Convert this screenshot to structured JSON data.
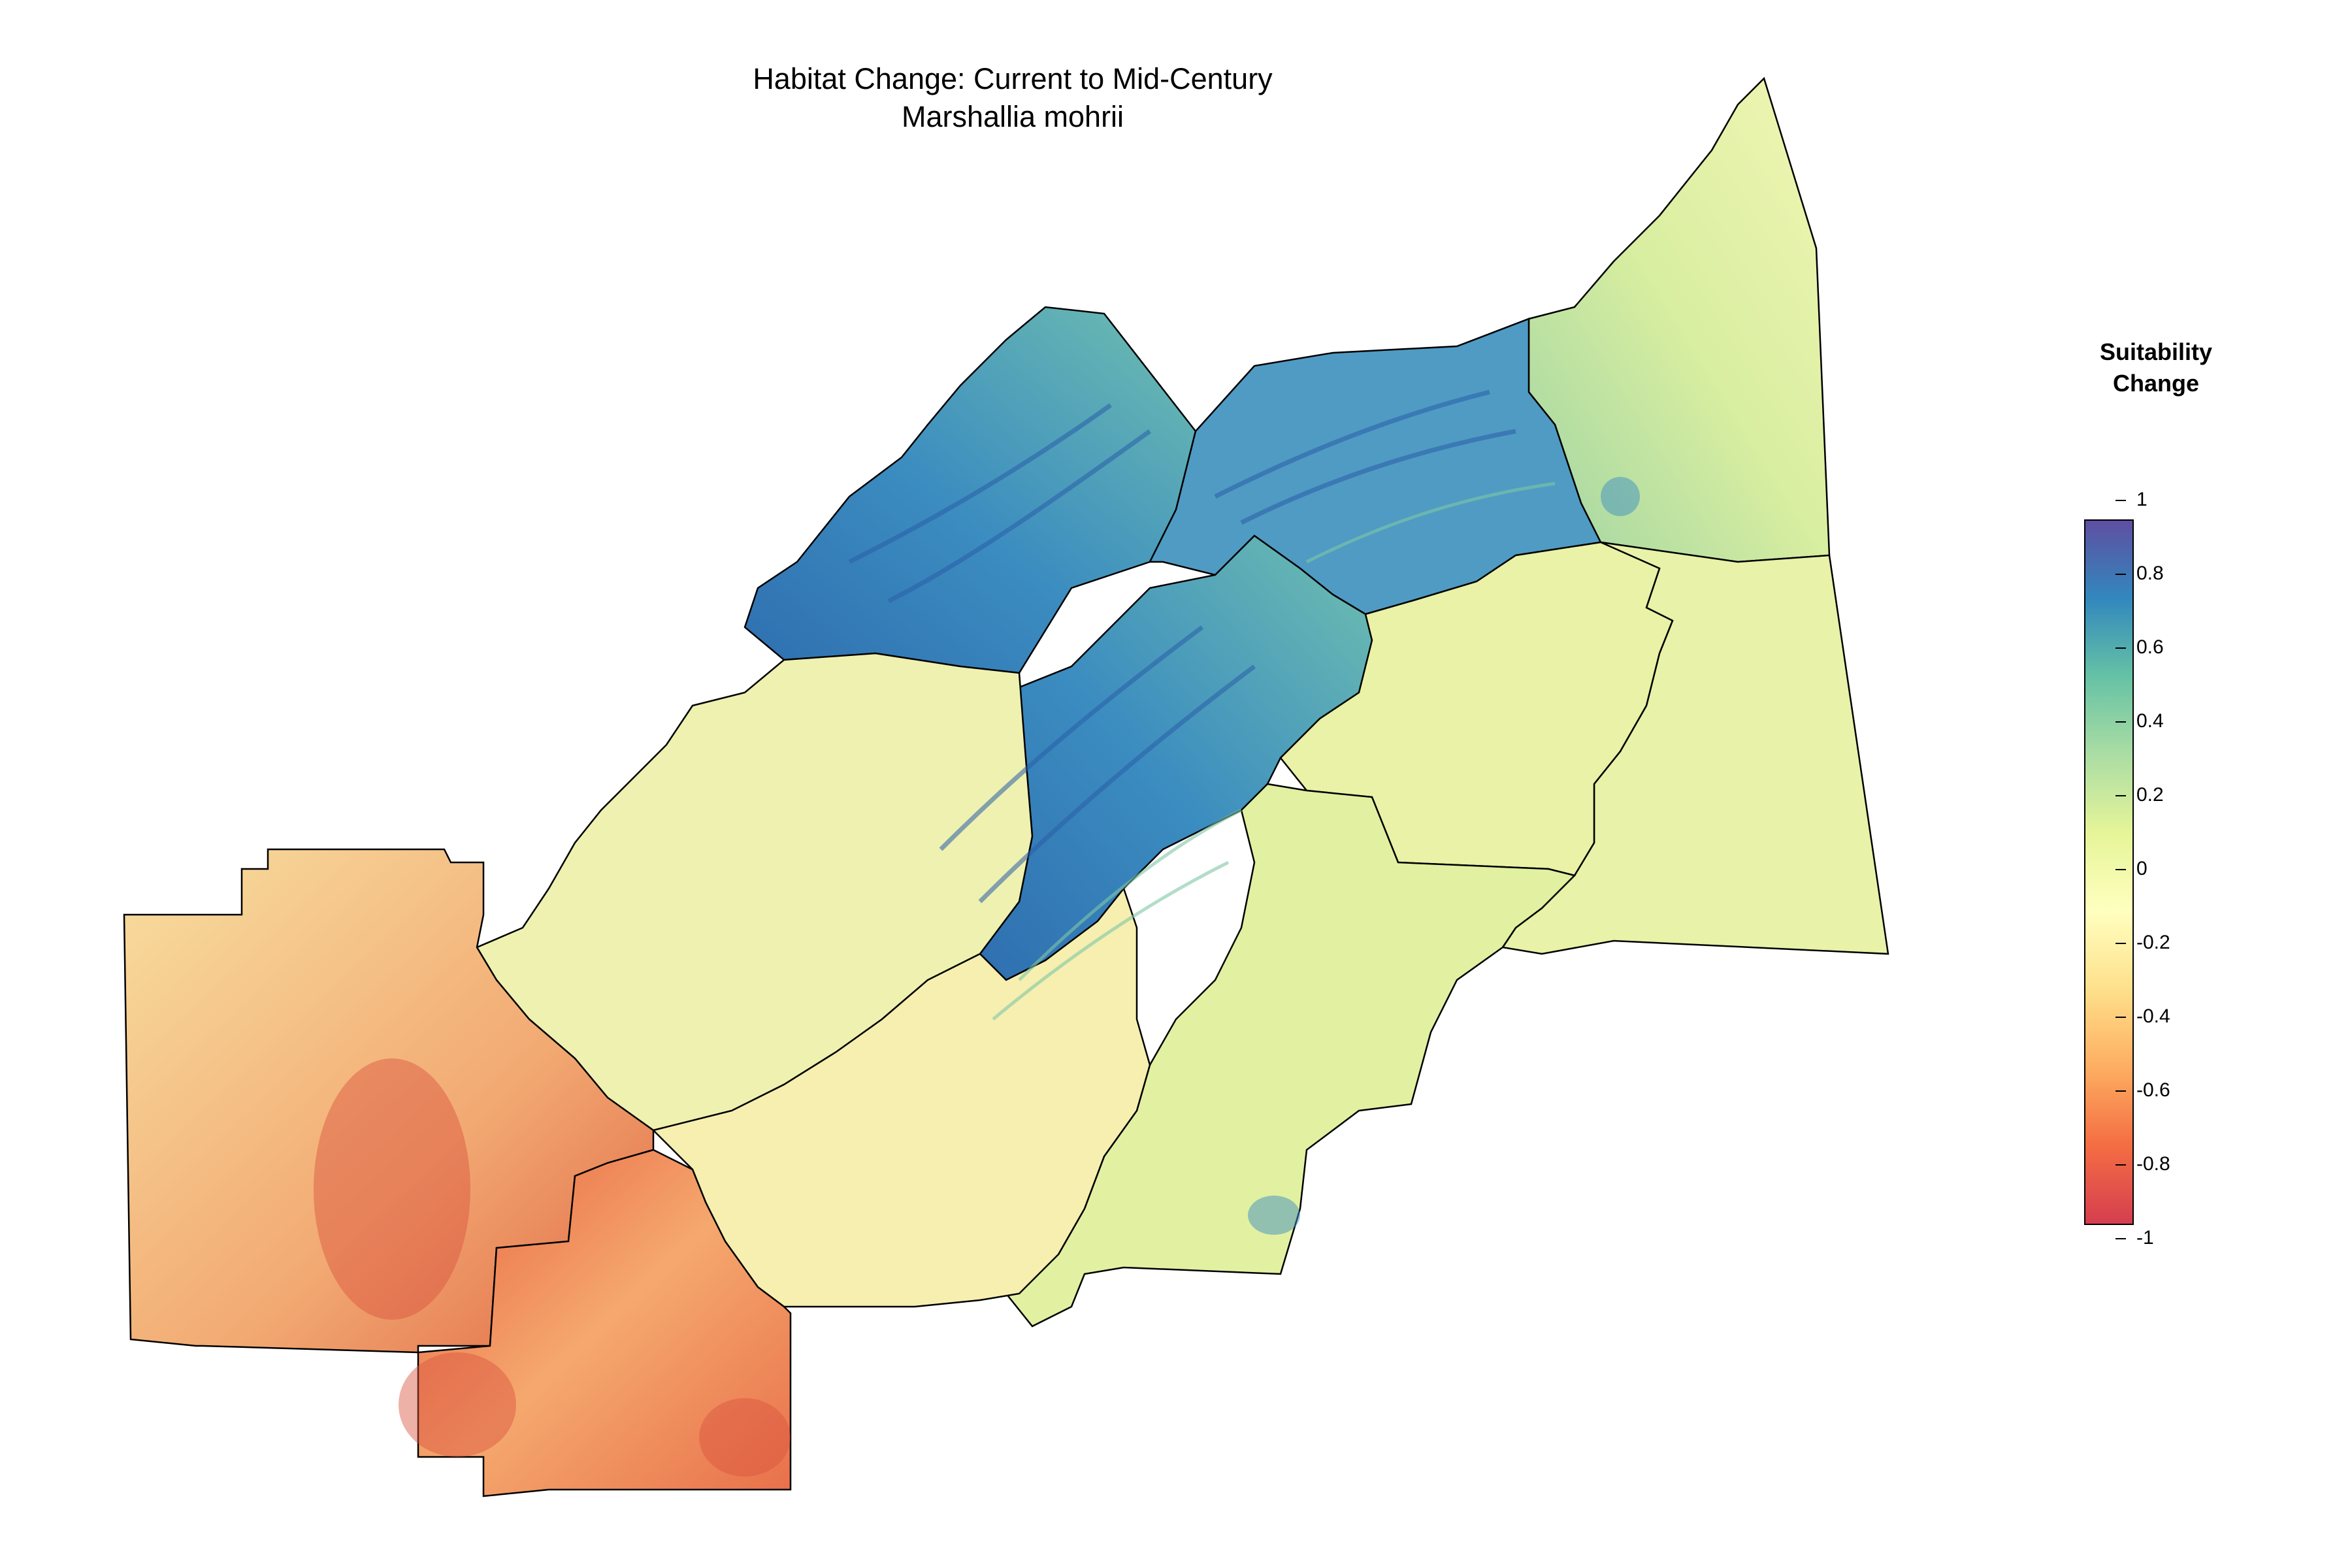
{
  "title": {
    "line1": "Habitat Change: Current to Mid-Century",
    "line2": "Marshallia mohrii"
  },
  "legend": {
    "title_line1": "Suitability",
    "title_line2": "Change",
    "ticks": [
      "1",
      "0.8",
      "0.6",
      "0.4",
      "0.2",
      "0",
      "-0.2",
      "-0.4",
      "-0.6",
      "-0.8",
      "-1"
    ],
    "range": [
      -1,
      1
    ],
    "colors": {
      "max": "#5e4fa2",
      "high": "#3288bd",
      "mid_high": "#66c2a5",
      "low_pos": "#abdda4",
      "pos_small": "#e6f598",
      "zero": "#ffffbf",
      "neg_small": "#fee08b",
      "low_neg": "#fdae61",
      "mid_neg": "#f46d43",
      "min": "#d53e4f"
    }
  },
  "map": {
    "region_colors": {
      "northeast_upper": "#dff0a0",
      "northeast_strip": "#c7e79a",
      "northeast_main": "#eaf3a8",
      "ridge_north": "#4f9cc4",
      "ridge_center": "#3d8fc0",
      "ridge_band": "#2f7fb9",
      "central_east": "#f0f4ae",
      "east_lobe": "#e4f1a4",
      "central_south": "#f7f0b0",
      "west_upper": "#f6e3a0",
      "west_main": "#f6c788",
      "west_hot": "#ec8a5a",
      "south_block": "#f3a26d",
      "south_hot": "#e46a48",
      "southeast_block": "#f3f1b0"
    },
    "boundary_color": "#000000"
  }
}
